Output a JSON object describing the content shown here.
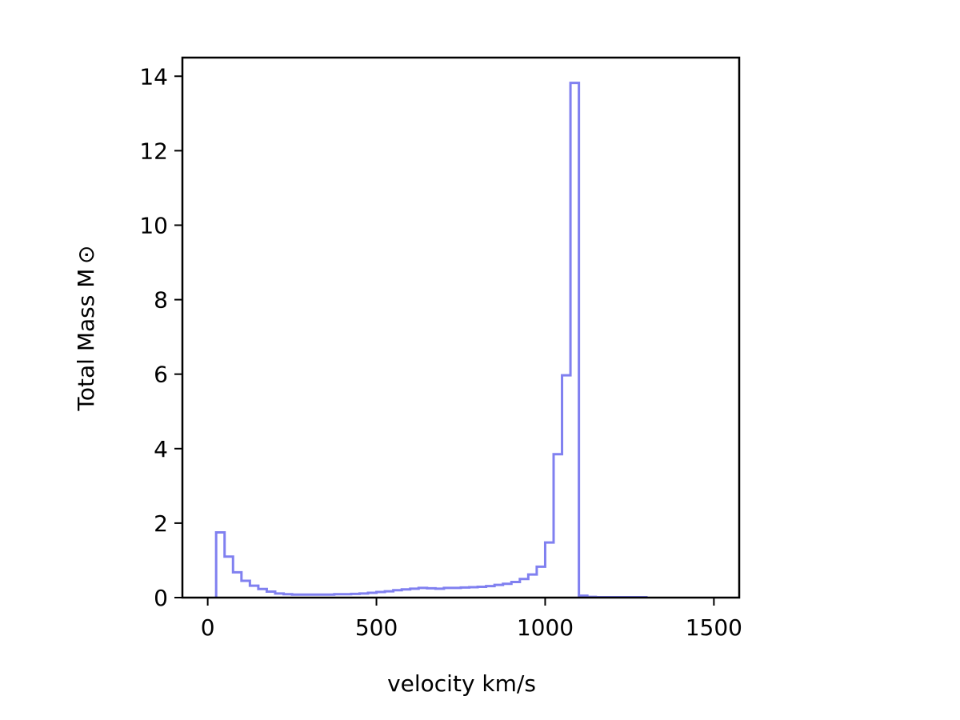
{
  "chart_data": {
    "type": "histogram",
    "title": "",
    "xlabel": "velocity km/s",
    "ylabel": "Total Mass M ⊙",
    "xlim": [
      -75,
      1575
    ],
    "ylim": [
      0,
      14.5
    ],
    "xticks": [
      0,
      500,
      1000,
      1500
    ],
    "yticks": [
      0,
      2,
      4,
      6,
      8,
      10,
      12,
      14
    ],
    "grid": false,
    "legend": "none",
    "series": [
      {
        "color": "#8080f0",
        "style": "step",
        "bin_width": 25,
        "bin_edges_start": 25,
        "values": [
          1.75,
          1.1,
          0.68,
          0.45,
          0.32,
          0.23,
          0.16,
          0.11,
          0.09,
          0.08,
          0.08,
          0.08,
          0.08,
          0.08,
          0.09,
          0.09,
          0.1,
          0.11,
          0.13,
          0.15,
          0.17,
          0.2,
          0.22,
          0.24,
          0.26,
          0.25,
          0.24,
          0.26,
          0.26,
          0.27,
          0.28,
          0.29,
          0.31,
          0.34,
          0.37,
          0.42,
          0.5,
          0.62,
          0.83,
          1.48,
          3.85,
          5.97,
          13.82,
          0.05,
          0.02,
          0.01,
          0.01,
          0.01,
          0.01,
          0.01,
          0.01
        ]
      }
    ]
  }
}
